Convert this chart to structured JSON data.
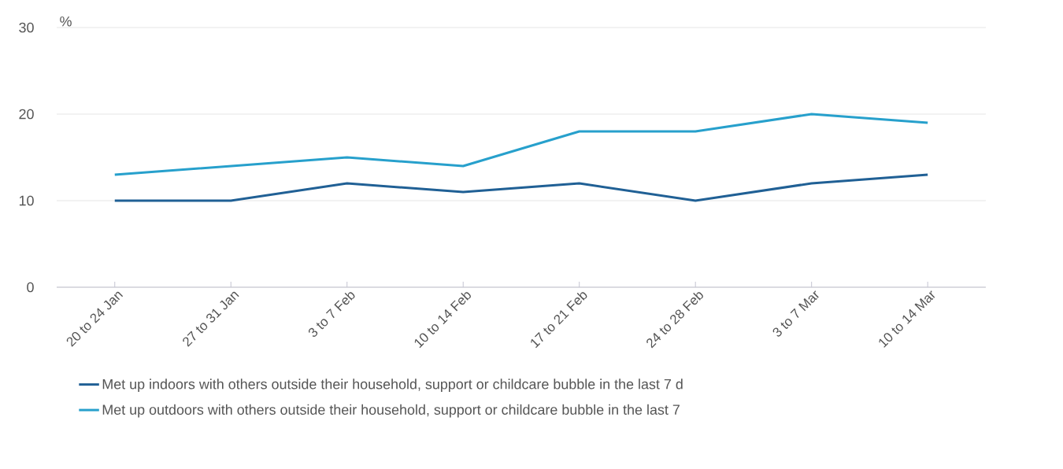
{
  "chart_data": {
    "type": "line",
    "ylabel": "%",
    "categories": [
      "20 to 24 Jan",
      "27 to 31 Jan",
      "3 to 7 Feb",
      "10 to 14 Feb",
      "17 to 21 Feb",
      "24 to 28 Feb",
      "3 to 7 Mar",
      "10 to 14 Mar"
    ],
    "series": [
      {
        "name": "Met up indoors with others outside their household, support or childcare bubble in the last 7 d",
        "color": "#206095",
        "values": [
          10,
          10,
          12,
          11,
          12,
          10,
          12,
          13
        ]
      },
      {
        "name": "Met up outdoors with others outside their household, support or childcare bubble in the last 7",
        "color": "#27a0cc",
        "values": [
          13,
          14,
          15,
          14,
          18,
          18,
          20,
          19
        ]
      }
    ],
    "ylim": [
      0,
      30
    ],
    "yticks": [
      0,
      10,
      20,
      30
    ],
    "grid": "y",
    "legend": "bottom",
    "marker": "none",
    "line_style": "solid"
  }
}
